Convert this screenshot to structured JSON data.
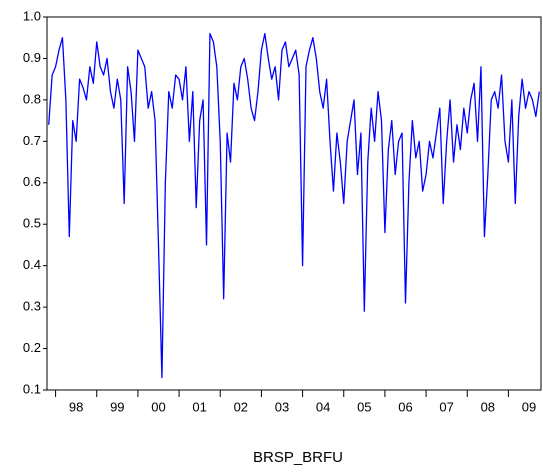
{
  "chart_data": {
    "type": "line",
    "x_label": "BRSP_BRFU",
    "categories": [
      null,
      null,
      null,
      null,
      null,
      null,
      null,
      null,
      "98",
      null,
      null,
      null,
      null,
      null,
      null,
      null,
      null,
      null,
      null,
      null,
      "99",
      null,
      null,
      null,
      null,
      null,
      null,
      null,
      null,
      null,
      null,
      null,
      "00",
      null,
      null,
      null,
      null,
      null,
      null,
      null,
      null,
      null,
      null,
      null,
      "01",
      null,
      null,
      null,
      null,
      null,
      null,
      null,
      null,
      null,
      null,
      null,
      "02",
      null,
      null,
      null,
      null,
      null,
      null,
      null,
      null,
      null,
      null,
      null,
      "03",
      null,
      null,
      null,
      null,
      null,
      null,
      null,
      null,
      null,
      null,
      null,
      "04",
      null,
      null,
      null,
      null,
      null,
      null,
      null,
      null,
      null,
      null,
      null,
      "05",
      null,
      null,
      null,
      null,
      null,
      null,
      null,
      null,
      null,
      null,
      null,
      "06",
      null,
      null,
      null,
      null,
      null,
      null,
      null,
      null,
      null,
      null,
      null,
      "07",
      null,
      null,
      null,
      null,
      null,
      null,
      null,
      null,
      null,
      null,
      null,
      "08",
      null,
      null,
      null,
      null,
      null,
      null,
      null,
      null,
      null,
      null,
      null,
      "09",
      null,
      null,
      null
    ],
    "series": [
      {
        "color": "#0000ff",
        "values": [
          0.74,
          0.86,
          0.88,
          0.92,
          0.95,
          0.8,
          0.47,
          0.75,
          0.7,
          0.85,
          0.83,
          0.8,
          0.88,
          0.84,
          0.94,
          0.88,
          0.86,
          0.9,
          0.82,
          0.78,
          0.85,
          0.8,
          0.55,
          0.88,
          0.82,
          0.7,
          0.92,
          0.9,
          0.88,
          0.78,
          0.82,
          0.75,
          0.45,
          0.13,
          0.6,
          0.82,
          0.78,
          0.86,
          0.85,
          0.8,
          0.88,
          0.7,
          0.82,
          0.54,
          0.75,
          0.8,
          0.45,
          0.96,
          0.94,
          0.88,
          0.7,
          0.32,
          0.72,
          0.65,
          0.84,
          0.8,
          0.88,
          0.9,
          0.85,
          0.78,
          0.75,
          0.82,
          0.92,
          0.96,
          0.9,
          0.85,
          0.88,
          0.8,
          0.92,
          0.94,
          0.88,
          0.9,
          0.92,
          0.86,
          0.4,
          0.88,
          0.92,
          0.95,
          0.9,
          0.82,
          0.78,
          0.85,
          0.7,
          0.58,
          0.72,
          0.65,
          0.55,
          0.7,
          0.75,
          0.8,
          0.62,
          0.72,
          0.29,
          0.65,
          0.78,
          0.7,
          0.82,
          0.75,
          0.48,
          0.68,
          0.75,
          0.62,
          0.7,
          0.72,
          0.31,
          0.6,
          0.75,
          0.66,
          0.7,
          0.58,
          0.62,
          0.7,
          0.66,
          0.72,
          0.78,
          0.55,
          0.7,
          0.8,
          0.65,
          0.74,
          0.68,
          0.78,
          0.72,
          0.8,
          0.84,
          0.7,
          0.88,
          0.47,
          0.62,
          0.8,
          0.82,
          0.78,
          0.86,
          0.7,
          0.65,
          0.8,
          0.55,
          0.76,
          0.85,
          0.78,
          0.82,
          0.8,
          0.76,
          0.82
        ]
      }
    ],
    "ylim": [
      0.1,
      1.0
    ],
    "yticks": [
      0.1,
      0.2,
      0.3,
      0.4,
      0.5,
      0.6,
      0.7,
      0.8,
      0.9,
      {
        "value": 1.0,
        "label": "1.0"
      }
    ]
  }
}
